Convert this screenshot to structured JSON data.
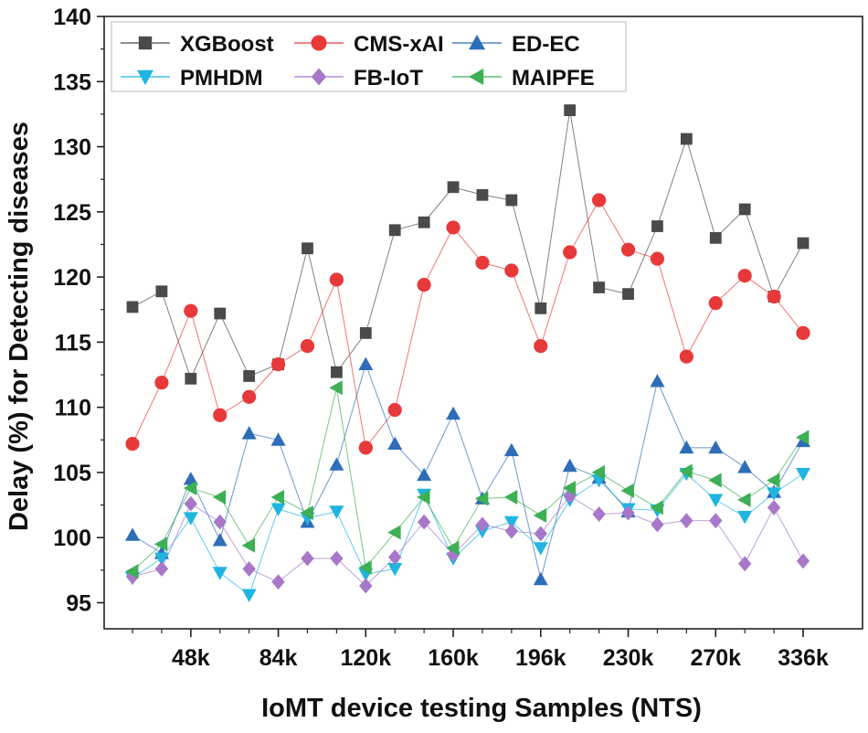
{
  "chart_data": {
    "type": "line",
    "title": "",
    "xlabel": "IoMT device testing Samples (NTS)",
    "ylabel": "Delay (%) for Detecting diseases",
    "ylim": [
      93,
      140
    ],
    "yticks": [
      95,
      100,
      105,
      110,
      115,
      120,
      125,
      130,
      135,
      140
    ],
    "xtick_labels": [
      "48k",
      "84k",
      "120k",
      "160k",
      "196k",
      "230k",
      "270k",
      "336k"
    ],
    "xtick_positions": [
      3,
      6,
      9,
      12,
      15,
      18,
      21,
      24
    ],
    "x_count": 24,
    "grid": false,
    "legend_position": "top-left",
    "series": [
      {
        "name": "XGBoost",
        "marker": "square",
        "color": "#4a4a4a",
        "values": [
          117.7,
          118.9,
          112.2,
          117.2,
          112.4,
          113.3,
          122.2,
          112.7,
          115.7,
          123.6,
          124.2,
          126.9,
          126.3,
          125.9,
          117.6,
          132.8,
          119.2,
          118.7,
          123.9,
          130.6,
          123.0,
          125.2,
          118.5,
          122.6
        ]
      },
      {
        "name": "CMS-xAI",
        "marker": "circle",
        "color": "#e8393a",
        "values": [
          107.2,
          111.9,
          117.4,
          109.4,
          110.8,
          113.3,
          114.7,
          119.8,
          106.9,
          109.8,
          119.4,
          123.8,
          121.1,
          120.5,
          114.7,
          121.9,
          125.9,
          122.1,
          121.4,
          113.9,
          118.0,
          120.1,
          118.5,
          115.7
        ]
      },
      {
        "name": "ED-EC",
        "marker": "triangle-up",
        "color": "#2e6db8",
        "values": [
          100.2,
          98.8,
          104.5,
          99.8,
          108.0,
          107.5,
          101.2,
          105.6,
          113.3,
          107.2,
          104.8,
          109.5,
          103.0,
          106.7,
          96.8,
          105.5,
          104.6,
          102.0,
          112.0,
          106.9,
          106.9,
          105.4,
          103.5,
          107.4
        ]
      },
      {
        "name": "PMHDM",
        "marker": "triangle-down",
        "color": "#1fb5e0",
        "values": [
          96.9,
          98.4,
          101.5,
          97.3,
          95.6,
          102.2,
          101.5,
          102.0,
          97.2,
          97.6,
          103.3,
          98.4,
          100.5,
          101.2,
          99.2,
          102.9,
          104.4,
          102.2,
          102.1,
          104.9,
          102.9,
          101.6,
          103.4,
          104.9
        ]
      },
      {
        "name": "FB-IoT",
        "marker": "diamond",
        "color": "#a778c9",
        "values": [
          97.0,
          97.6,
          102.6,
          101.2,
          97.6,
          96.6,
          98.4,
          98.4,
          96.3,
          98.5,
          101.2,
          98.7,
          101.0,
          100.5,
          100.3,
          103.2,
          101.8,
          101.9,
          101.0,
          101.3,
          101.3,
          98.0,
          102.3,
          98.2
        ]
      },
      {
        "name": "MAIPFE",
        "marker": "triangle-left",
        "color": "#3daf55",
        "values": [
          97.4,
          99.5,
          103.8,
          103.1,
          99.4,
          103.1,
          101.9,
          111.5,
          97.7,
          100.4,
          103.1,
          99.2,
          103.0,
          103.1,
          101.7,
          103.8,
          105.0,
          103.6,
          102.3,
          105.1,
          104.4,
          102.9,
          104.4,
          107.7
        ]
      }
    ]
  }
}
